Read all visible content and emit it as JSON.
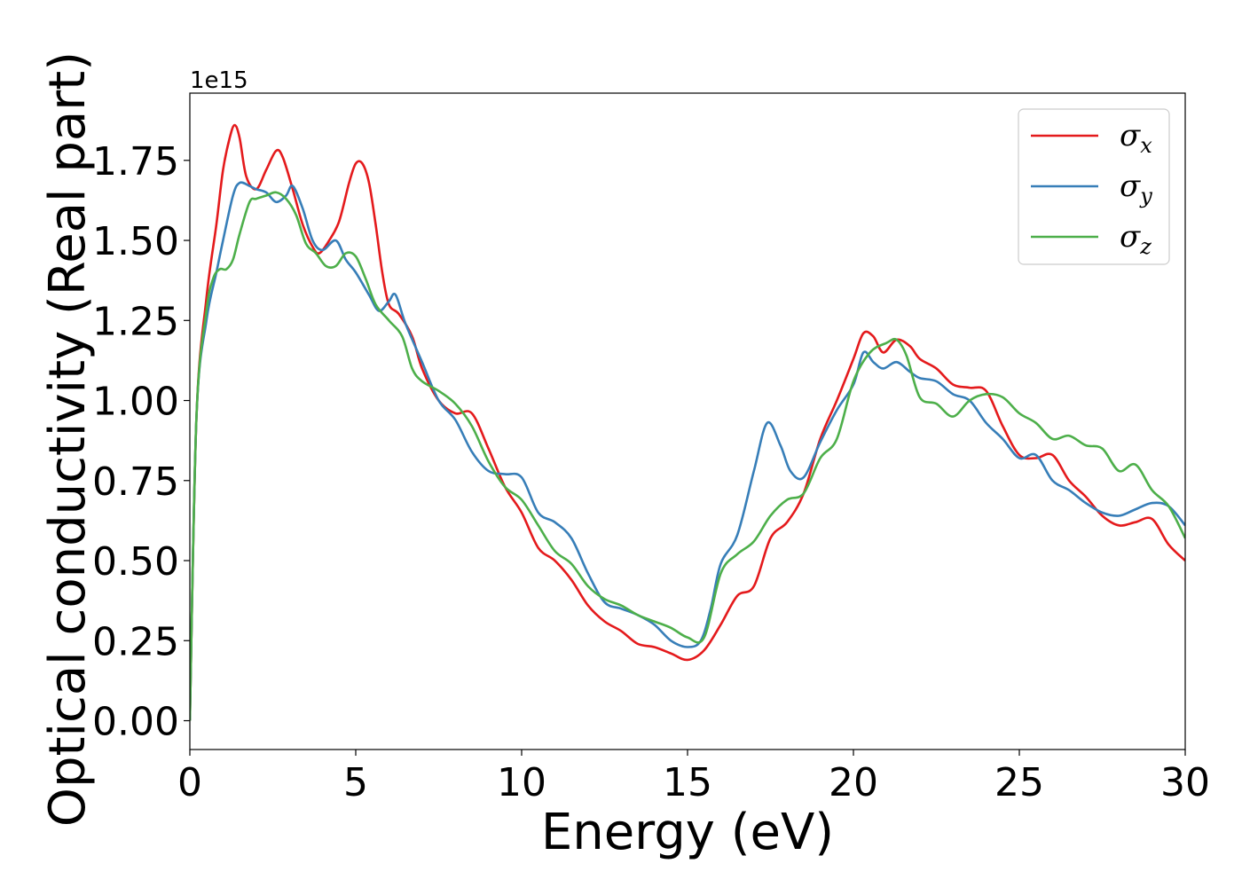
{
  "chart_data": {
    "type": "line",
    "xlabel": "Energy (eV)",
    "ylabel": "Optical conductivity (Real part)",
    "y_offset_text": "1e15",
    "y_scale": 1000000000000000.0,
    "xlim": [
      0,
      30
    ],
    "ylim": [
      -0.09,
      1.96
    ],
    "x_ticks": [
      0,
      5,
      10,
      15,
      20,
      25,
      30
    ],
    "x_tick_labels": [
      "0",
      "5",
      "10",
      "15",
      "20",
      "25",
      "30"
    ],
    "y_ticks": [
      0.0,
      0.25,
      0.5,
      0.75,
      1.0,
      1.25,
      1.5,
      1.75
    ],
    "y_tick_labels": [
      "0.00",
      "0.25",
      "0.50",
      "0.75",
      "1.00",
      "1.25",
      "1.50",
      "1.75"
    ],
    "grid": false,
    "legend_position": "top-right",
    "series": [
      {
        "name": "σ",
        "subscript": "x",
        "color": "#e41a1c",
        "x": [
          0,
          0.2,
          0.5,
          0.8,
          1.0,
          1.2,
          1.35,
          1.5,
          1.7,
          2.0,
          2.3,
          2.6,
          2.8,
          3.1,
          3.4,
          3.7,
          3.9,
          4.2,
          4.5,
          4.8,
          5.0,
          5.2,
          5.4,
          5.6,
          5.8,
          6.0,
          6.3,
          6.7,
          7.0,
          7.5,
          8.0,
          8.5,
          9.0,
          9.5,
          10.0,
          10.5,
          11.0,
          11.5,
          12.0,
          12.5,
          13.0,
          13.5,
          14.0,
          14.5,
          15.0,
          15.5,
          16.0,
          16.5,
          17.0,
          17.5,
          18.0,
          18.5,
          19.0,
          19.5,
          20.0,
          20.3,
          20.6,
          20.9,
          21.3,
          21.7,
          22.0,
          22.5,
          23.0,
          23.5,
          24.0,
          24.5,
          25.0,
          25.5,
          26.0,
          26.5,
          27.0,
          27.5,
          28.0,
          28.5,
          29.0,
          29.5,
          30.0
        ],
        "values": [
          0.0,
          0.95,
          1.32,
          1.55,
          1.72,
          1.82,
          1.86,
          1.82,
          1.7,
          1.66,
          1.72,
          1.78,
          1.76,
          1.66,
          1.55,
          1.48,
          1.46,
          1.5,
          1.56,
          1.68,
          1.74,
          1.74,
          1.68,
          1.55,
          1.4,
          1.3,
          1.27,
          1.2,
          1.1,
          1.0,
          0.96,
          0.96,
          0.85,
          0.73,
          0.65,
          0.54,
          0.5,
          0.44,
          0.36,
          0.31,
          0.28,
          0.24,
          0.23,
          0.21,
          0.19,
          0.22,
          0.3,
          0.39,
          0.42,
          0.57,
          0.62,
          0.71,
          0.88,
          1.0,
          1.13,
          1.21,
          1.2,
          1.15,
          1.19,
          1.17,
          1.13,
          1.1,
          1.05,
          1.04,
          1.03,
          0.92,
          0.83,
          0.82,
          0.83,
          0.75,
          0.7,
          0.64,
          0.61,
          0.62,
          0.63,
          0.55,
          0.5
        ]
      },
      {
        "name": "σ",
        "subscript": "y",
        "color": "#377eb8",
        "x": [
          0,
          0.2,
          0.5,
          0.8,
          1.0,
          1.3,
          1.5,
          1.8,
          2.0,
          2.3,
          2.6,
          2.9,
          3.1,
          3.4,
          3.7,
          4.0,
          4.4,
          4.7,
          5.0,
          5.4,
          5.7,
          6.0,
          6.2,
          6.5,
          7.0,
          7.5,
          8.0,
          8.5,
          9.0,
          9.5,
          10.0,
          10.5,
          11.0,
          11.5,
          12.0,
          12.5,
          13.0,
          13.5,
          14.0,
          14.5,
          15.0,
          15.4,
          15.7,
          16.0,
          16.5,
          17.0,
          17.4,
          17.8,
          18.1,
          18.5,
          19.0,
          19.5,
          20.0,
          20.3,
          20.6,
          20.9,
          21.3,
          21.7,
          22.0,
          22.5,
          23.0,
          23.5,
          24.0,
          24.5,
          25.0,
          25.5,
          26.0,
          26.5,
          27.0,
          27.5,
          28.0,
          28.5,
          29.0,
          29.5,
          30.0
        ],
        "values": [
          0.0,
          0.95,
          1.25,
          1.4,
          1.5,
          1.64,
          1.68,
          1.67,
          1.66,
          1.65,
          1.62,
          1.64,
          1.67,
          1.6,
          1.5,
          1.47,
          1.5,
          1.44,
          1.4,
          1.33,
          1.28,
          1.31,
          1.33,
          1.24,
          1.12,
          1.0,
          0.94,
          0.84,
          0.78,
          0.77,
          0.76,
          0.65,
          0.62,
          0.57,
          0.46,
          0.37,
          0.35,
          0.33,
          0.3,
          0.25,
          0.23,
          0.25,
          0.35,
          0.49,
          0.58,
          0.78,
          0.93,
          0.86,
          0.78,
          0.76,
          0.87,
          0.97,
          1.05,
          1.15,
          1.12,
          1.1,
          1.12,
          1.09,
          1.07,
          1.06,
          1.02,
          1.0,
          0.93,
          0.88,
          0.82,
          0.83,
          0.75,
          0.72,
          0.68,
          0.65,
          0.64,
          0.66,
          0.68,
          0.67,
          0.61
        ]
      },
      {
        "name": "σ",
        "subscript": "z",
        "color": "#4daf4a",
        "x": [
          0,
          0.2,
          0.5,
          0.7,
          0.9,
          1.1,
          1.3,
          1.5,
          1.8,
          2.0,
          2.3,
          2.6,
          2.9,
          3.2,
          3.5,
          3.8,
          4.1,
          4.4,
          4.7,
          5.0,
          5.3,
          5.6,
          6.0,
          6.4,
          6.7,
          7.0,
          7.5,
          8.0,
          8.5,
          9.0,
          9.5,
          10.0,
          10.5,
          11.0,
          11.5,
          12.0,
          12.5,
          13.0,
          13.5,
          14.0,
          14.5,
          15.0,
          15.5,
          16.0,
          16.5,
          17.0,
          17.5,
          18.0,
          18.5,
          19.0,
          19.5,
          20.0,
          20.5,
          21.0,
          21.3,
          21.6,
          22.0,
          22.5,
          23.0,
          23.5,
          24.0,
          24.5,
          25.0,
          25.5,
          26.0,
          26.5,
          27.0,
          27.5,
          28.0,
          28.5,
          29.0,
          29.5,
          30.0
        ],
        "values": [
          0.0,
          0.95,
          1.28,
          1.38,
          1.41,
          1.41,
          1.44,
          1.52,
          1.62,
          1.63,
          1.64,
          1.65,
          1.63,
          1.58,
          1.49,
          1.46,
          1.42,
          1.42,
          1.46,
          1.45,
          1.38,
          1.3,
          1.25,
          1.2,
          1.1,
          1.06,
          1.03,
          0.99,
          0.92,
          0.81,
          0.73,
          0.69,
          0.61,
          0.53,
          0.49,
          0.42,
          0.38,
          0.36,
          0.33,
          0.31,
          0.29,
          0.26,
          0.26,
          0.46,
          0.52,
          0.56,
          0.64,
          0.69,
          0.71,
          0.82,
          0.88,
          1.06,
          1.15,
          1.18,
          1.19,
          1.14,
          1.01,
          0.99,
          0.95,
          1.0,
          1.02,
          1.01,
          0.96,
          0.93,
          0.88,
          0.89,
          0.86,
          0.85,
          0.78,
          0.8,
          0.72,
          0.67,
          0.57
        ]
      }
    ]
  }
}
